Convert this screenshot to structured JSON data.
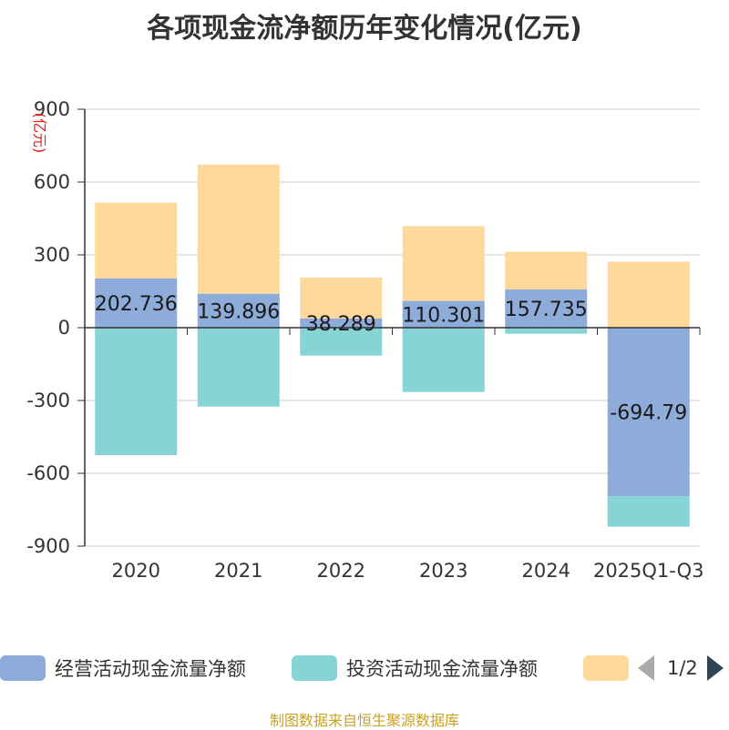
{
  "chart_data": {
    "type": "bar",
    "title": "各项现金流净额历年变化情况(亿元)",
    "ylabel": "(亿元)",
    "xlabel": "",
    "ylim": [
      -900,
      900
    ],
    "yticks": [
      900,
      600,
      300,
      0,
      -300,
      -600,
      -900
    ],
    "categories": [
      "2020",
      "2021",
      "2022",
      "2023",
      "2024",
      "2025Q1-Q3"
    ],
    "stacked": true,
    "series": [
      {
        "name": "经营活动现金流量净额",
        "color": "#8eacd9",
        "values": [
          202.736,
          139.896,
          38.289,
          110.301,
          157.735,
          -694.79
        ],
        "labels": [
          "202.736",
          "139.896",
          "38.289",
          "110.301",
          "157.735",
          "-694.79"
        ]
      },
      {
        "name": "投资活动现金流量净额",
        "color": "#86d4d6",
        "values": [
          -525,
          -325,
          -115,
          -265,
          -25,
          -125
        ]
      },
      {
        "name": "",
        "color": "#fed99b",
        "values": [
          312,
          532,
          168,
          308,
          155,
          272
        ]
      }
    ],
    "legend_position": "bottom",
    "grid": true
  },
  "legend": {
    "items": [
      {
        "label": "经营活动现金流量净额",
        "color": "#8eacd9"
      },
      {
        "label": "投资活动现金流量净额",
        "color": "#86d4d6"
      },
      {
        "label": "",
        "color": "#fed99b"
      }
    ],
    "pager": "1/2"
  },
  "source_note": "制图数据来自恒生聚源数据库"
}
